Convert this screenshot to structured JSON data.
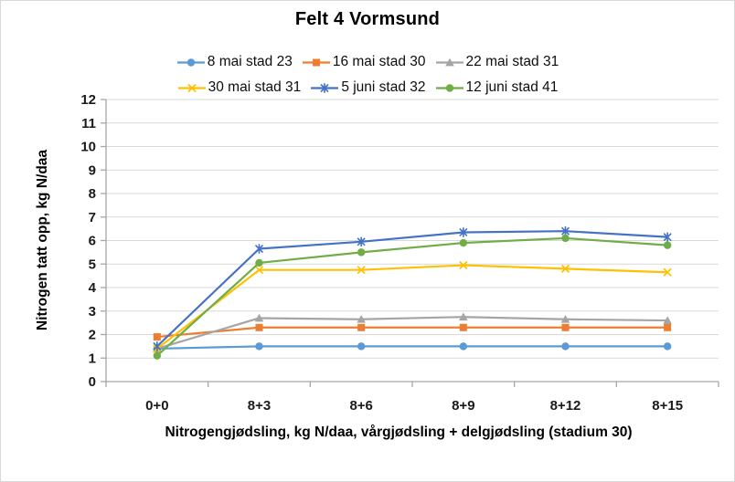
{
  "chart_data": {
    "type": "line",
    "title": "Felt 4 Vormsund",
    "xlabel": "Nitrogengjødsling, kg N/daa, vårgjødsling + delgjødsling (stadium 30)",
    "ylabel": "Nitrogen tatt opp, kg N/daa",
    "categories": [
      "0+0",
      "8+3",
      "8+6",
      "8+9",
      "8+12",
      "8+15"
    ],
    "ylim": [
      0,
      12
    ],
    "ytick_step": 1,
    "grid": "horizontal",
    "legend_position": "top",
    "legend_rows": [
      [
        0,
        1,
        2
      ],
      [
        3,
        4,
        5
      ]
    ],
    "series": [
      {
        "name": "8 mai stad 23",
        "color": "#5B9BD5",
        "marker": "circle",
        "values": [
          1.4,
          1.5,
          1.5,
          1.5,
          1.5,
          1.5
        ]
      },
      {
        "name": "16 mai stad 30",
        "color": "#ED7D31",
        "marker": "square",
        "values": [
          1.9,
          2.3,
          2.3,
          2.3,
          2.3,
          2.3
        ]
      },
      {
        "name": "22 mai stad 31",
        "color": "#A5A5A5",
        "marker": "triangle",
        "values": [
          1.4,
          2.7,
          2.65,
          2.75,
          2.65,
          2.6
        ]
      },
      {
        "name": "30 mai stad 31",
        "color": "#FFC000",
        "marker": "x",
        "values": [
          1.4,
          4.75,
          4.75,
          4.95,
          4.8,
          4.65
        ]
      },
      {
        "name": "5 juni stad 32",
        "color": "#4472C4",
        "marker": "asterisk",
        "values": [
          1.5,
          5.65,
          5.95,
          6.35,
          6.4,
          6.15
        ]
      },
      {
        "name": "12 juni stad 41",
        "color": "#70AD47",
        "marker": "circle",
        "values": [
          1.1,
          5.05,
          5.5,
          5.9,
          6.1,
          5.8
        ]
      }
    ],
    "axis_color": "#A6A6A6",
    "gridline_color": "#D9D9D9",
    "background_color": "#FFFFFF",
    "border_color": "#D9D9D9"
  }
}
